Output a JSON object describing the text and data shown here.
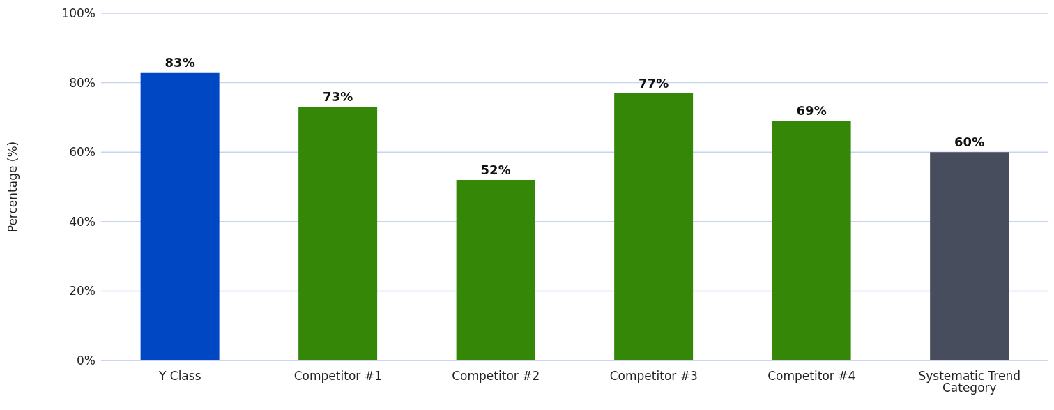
{
  "chart_data": {
    "type": "bar",
    "ylabel": "Percentage (%)",
    "categories": [
      "Y Class",
      "Competitor #1",
      "Competitor #2",
      "Competitor #3",
      "Competitor #4",
      "Systematic Trend Category"
    ],
    "values": [
      83,
      73,
      52,
      77,
      69,
      60
    ],
    "colors": [
      "#0047c3",
      "#358708",
      "#358708",
      "#358708",
      "#358708",
      "#474d5c"
    ],
    "value_labels": [
      "83%",
      "73%",
      "52%",
      "77%",
      "69%",
      "60%"
    ],
    "ylim": [
      0,
      100
    ],
    "yticks": [
      {
        "value": 0,
        "label": "0%"
      },
      {
        "value": 20,
        "label": "20%"
      },
      {
        "value": 40,
        "label": "40%"
      },
      {
        "value": 60,
        "label": "60%"
      },
      {
        "value": 80,
        "label": "80%"
      },
      {
        "value": 100,
        "label": "100%"
      }
    ],
    "grid": "y"
  }
}
